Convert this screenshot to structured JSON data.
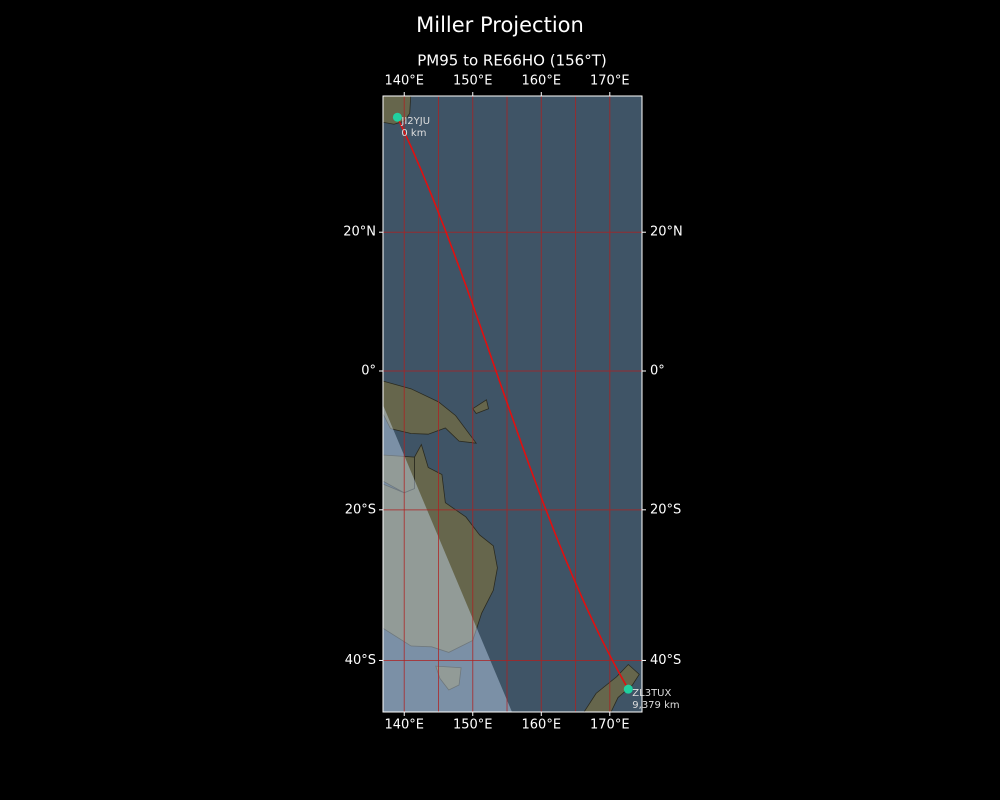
{
  "chart_data": {
    "type": "map",
    "title": "Miller Projection",
    "subtitle": "PM95 to RE66HO (156°T)",
    "projection": "miller",
    "xlim": [
      136.9,
      174.7
    ],
    "ylim": [
      -46.2,
      38.2
    ],
    "xticks": [
      {
        "value": 140,
        "label": "140°E"
      },
      {
        "value": 150,
        "label": "150°E"
      },
      {
        "value": 160,
        "label": "160°E"
      },
      {
        "value": 170,
        "label": "170°E"
      }
    ],
    "yticks": [
      {
        "value": 20,
        "label": "20°N"
      },
      {
        "value": 0,
        "label": "0°"
      },
      {
        "value": -20,
        "label": "20°S"
      },
      {
        "value": -40,
        "label": "40°S"
      }
    ],
    "xgrid": [
      140,
      145,
      150,
      155,
      160,
      165,
      170
    ],
    "ygrid": [
      20,
      0,
      -20,
      -40
    ],
    "grid_color": "#b02020",
    "path_color": "#e01010",
    "marker_color": "#20d0a0",
    "stations": [
      {
        "name": "JI2YJU",
        "lon": 139.0,
        "lat": 35.5,
        "distance": 0,
        "distance_label": "0 km"
      },
      {
        "name": "ZL3TUX",
        "lon": 172.7,
        "lat": -43.5,
        "distance": 9379,
        "distance_label": "9,379 km"
      }
    ]
  }
}
